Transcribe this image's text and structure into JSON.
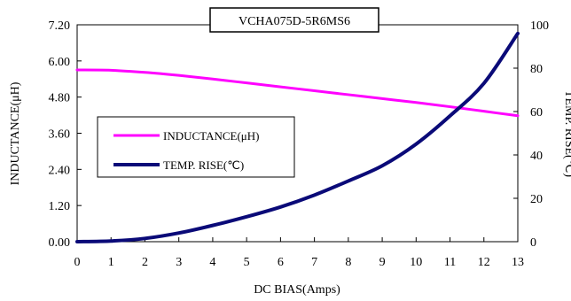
{
  "chart_data": {
    "type": "line",
    "title": "VCHA075D-5R6MS6",
    "xlabel": "DC BIAS(Amps)",
    "ylabel": "INDUCTANCE(μH)",
    "y2label": "TEMP. RISE(℃)",
    "xlim": [
      0,
      13
    ],
    "ylim": [
      0,
      7.2
    ],
    "y2lim": [
      0,
      100
    ],
    "x_ticks": [
      "0",
      "1",
      "2",
      "3",
      "4",
      "5",
      "6",
      "7",
      "8",
      "9",
      "10",
      "11",
      "12",
      "13"
    ],
    "y_ticks": [
      "0.00",
      "1.20",
      "2.40",
      "3.60",
      "4.80",
      "6.00",
      "7.20"
    ],
    "y2_ticks": [
      "0",
      "20",
      "40",
      "60",
      "80",
      "100"
    ],
    "grid": false,
    "legend_position": "center-left",
    "series": [
      {
        "name": "INDUCTANCE(μH)",
        "axis": "left",
        "color": "#ff00ff",
        "x": [
          0,
          1,
          2,
          3,
          4,
          5,
          6,
          7,
          8,
          9,
          10,
          11,
          12,
          13
        ],
        "values": [
          5.7,
          5.69,
          5.62,
          5.52,
          5.4,
          5.27,
          5.14,
          5.01,
          4.88,
          4.75,
          4.62,
          4.48,
          4.33,
          4.18
        ]
      },
      {
        "name": "TEMP. RISE(℃)",
        "axis": "right",
        "color": "#0a0a78",
        "x": [
          0,
          1,
          2,
          3,
          4,
          5,
          6,
          7,
          8,
          9,
          10,
          11,
          12,
          13
        ],
        "values": [
          0,
          0.3,
          1.5,
          4,
          7.5,
          11.5,
          16,
          21.5,
          28,
          35,
          45,
          58,
          73,
          96
        ]
      }
    ]
  }
}
